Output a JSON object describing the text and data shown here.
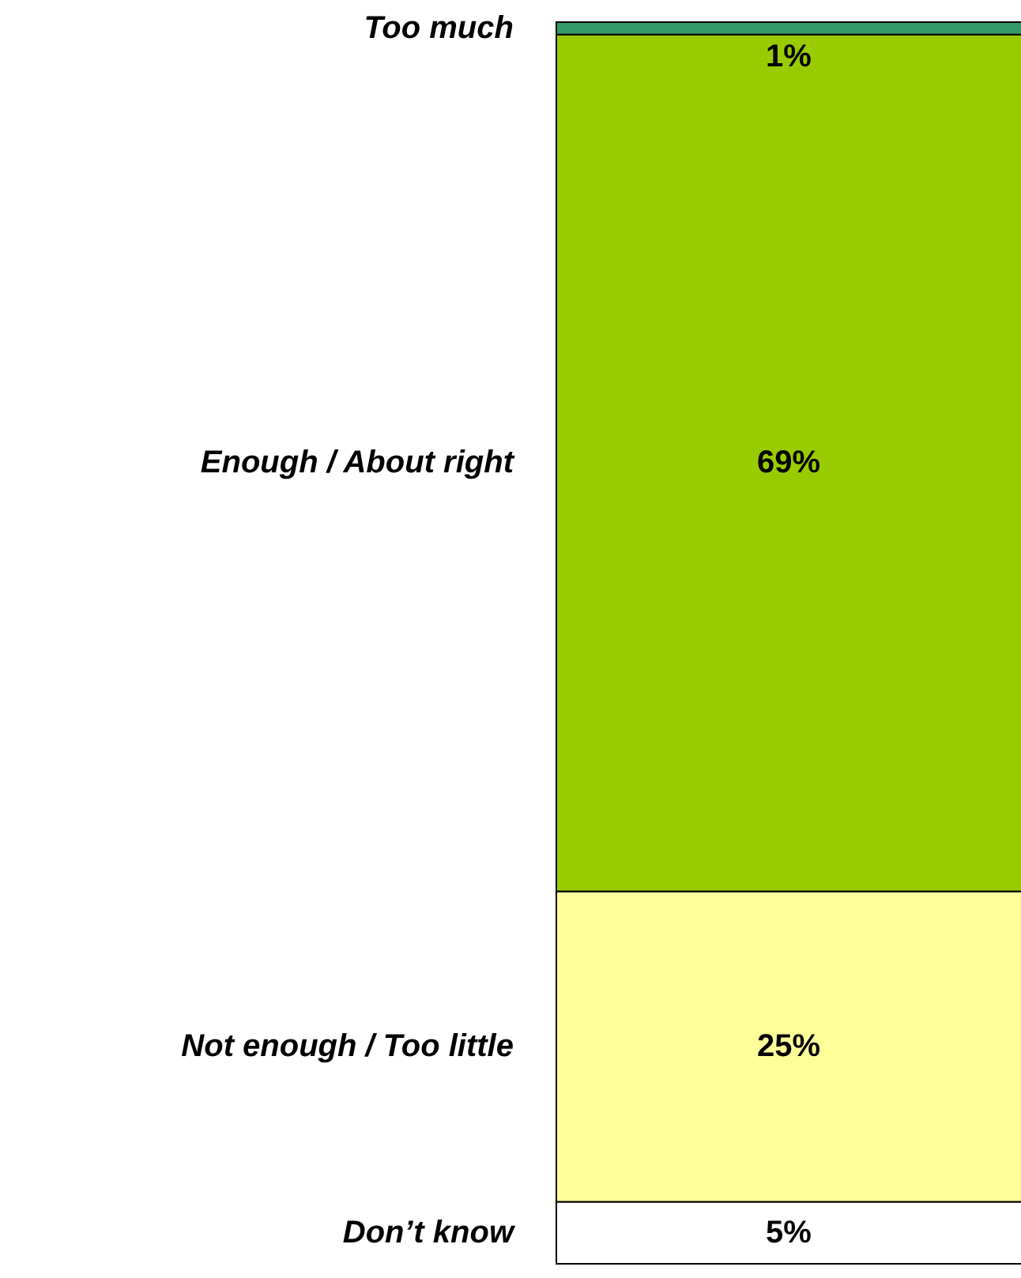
{
  "chart_data": {
    "type": "bar",
    "stacked": true,
    "categories": [
      null
    ],
    "tick_labels": false,
    "series": [
      {
        "name": "Don’t know",
        "color": "#ffffff",
        "values": [
          5
        ],
        "value_labels": [
          "5%"
        ]
      },
      {
        "name": "Not enough / Too little",
        "color": "#ffff99",
        "values": [
          25
        ],
        "value_labels": [
          "25%"
        ]
      },
      {
        "name": "Enough / About right",
        "color": "#99cc00",
        "values": [
          69
        ],
        "value_labels": [
          "69%"
        ]
      },
      {
        "name": "Too much",
        "color": "#339966",
        "values": [
          1
        ],
        "value_labels": [
          "1%"
        ]
      }
    ]
  }
}
